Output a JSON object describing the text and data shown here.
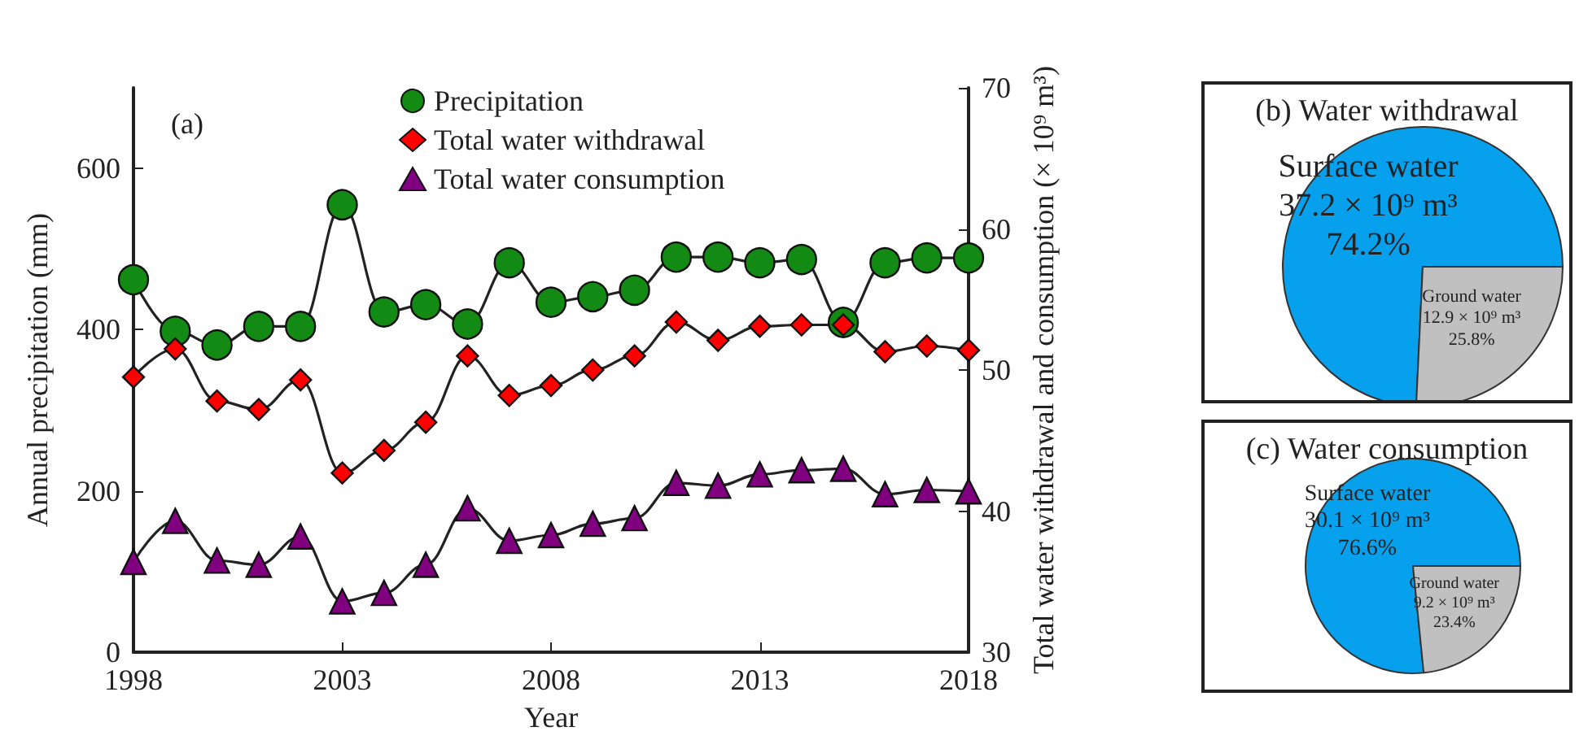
{
  "chart_data": [
    {
      "type": "line",
      "title": "(a)",
      "xlabel": "Year",
      "ylabel": "Annual precipitation (mm)",
      "y2label": "Total water withdrawal and consumption (× 10⁹ m³)",
      "x": [
        1998,
        1999,
        2000,
        2001,
        2002,
        2003,
        2004,
        2005,
        2006,
        2007,
        2008,
        2009,
        2010,
        2011,
        2012,
        2013,
        2014,
        2015,
        2016,
        2017,
        2018
      ],
      "series": [
        {
          "name": "Precipitation",
          "color": "#138a13",
          "marker": "circle",
          "values": [
            462,
            398,
            381,
            404,
            404,
            555,
            422,
            431,
            407,
            483,
            434,
            441,
            449,
            490,
            490,
            483,
            487,
            409,
            483,
            489,
            489
          ]
        },
        {
          "name": "Total water withdrawal",
          "color": "#ff0000",
          "marker": "diamond",
          "axis": "y2",
          "values": [
            49.5,
            51.5,
            47.8,
            47.2,
            49.3,
            42.7,
            44.3,
            46.3,
            51.0,
            48.2,
            48.9,
            50.0,
            51.0,
            53.4,
            52.1,
            53.1,
            53.2,
            53.2,
            51.3,
            51.7,
            51.4
          ]
        },
        {
          "name": "Total water consumption",
          "color": "#800080",
          "marker": "triangle",
          "axis": "y2",
          "values": [
            36.4,
            39.3,
            36.5,
            36.2,
            38.2,
            33.6,
            34.2,
            36.2,
            40.2,
            37.9,
            38.3,
            39.1,
            39.5,
            42.0,
            41.8,
            42.6,
            42.9,
            43.0,
            41.2,
            41.5,
            41.4
          ]
        }
      ],
      "xlim": [
        1998,
        2018
      ],
      "xticks": [
        1998,
        2003,
        2008,
        2013,
        2018
      ],
      "ylim": [
        0,
        700
      ],
      "yticks": [
        0,
        200,
        400,
        600
      ],
      "y2lim": [
        30,
        70
      ],
      "y2ticks": [
        30,
        40,
        50,
        60,
        70
      ],
      "grid": false,
      "legend": "top",
      "line_style": "solid"
    },
    {
      "type": "pie",
      "title": "(b) Water withdrawal",
      "categories": [
        "Surface water",
        "Ground water"
      ],
      "values": [
        37.2,
        12.9
      ],
      "colors": [
        "#06a0ec",
        "#c0c0c0"
      ],
      "value_labels": [
        "37.2 × 10⁹ m³\n74.2%",
        "12.9 × 10⁹ m³\n25.8%"
      ]
    },
    {
      "type": "pie",
      "title": "(c) Water consumption",
      "categories": [
        "Surface water",
        "Ground water"
      ],
      "values": [
        30.1,
        9.2
      ],
      "colors": [
        "#06a0ec",
        "#c0c0c0"
      ],
      "value_labels": [
        "30.1 × 10⁹ m³\n76.6%",
        "9.2 × 10⁹ m³\n23.4%"
      ]
    }
  ]
}
